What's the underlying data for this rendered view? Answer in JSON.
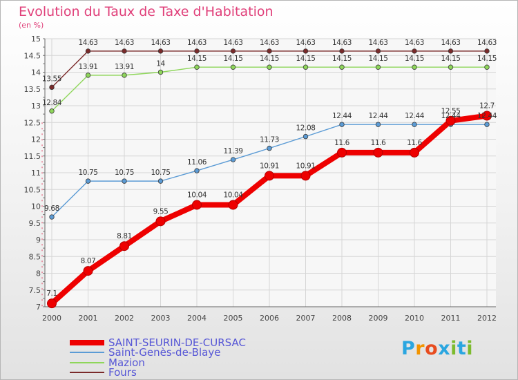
{
  "title": "Evolution du Taux de Taxe d'Habitation",
  "unit_label": "(en %)",
  "brand": {
    "letters": [
      "P",
      "r",
      "o",
      "x",
      "i",
      "t",
      "i"
    ],
    "colors": [
      "#2aa6e0",
      "#f29400",
      "#e84c1f",
      "#2aa6e0",
      "#7dbb2e",
      "#2aa6e0",
      "#7dbb2e"
    ]
  },
  "chart_data": {
    "type": "line",
    "x": [
      "2000",
      "2001",
      "2002",
      "2003",
      "2004",
      "2005",
      "2006",
      "2007",
      "2008",
      "2009",
      "2010",
      "2011",
      "2012"
    ],
    "ylim": [
      7,
      15
    ],
    "y_ticks": [
      "7",
      "7.5",
      "8",
      "8.5",
      "9",
      "9.5",
      "10",
      "10.5",
      "11",
      "11.5",
      "12",
      "12.5",
      "13",
      "13.5",
      "14",
      "14.5",
      "15"
    ],
    "grid": true,
    "legend_position": "bottom-left",
    "series": [
      {
        "name": "SAINT-SEURIN-DE-CURSAC",
        "color": "#ee0000",
        "values": [
          7.1,
          8.07,
          8.81,
          9.55,
          10.04,
          10.04,
          10.91,
          10.91,
          11.6,
          11.6,
          11.6,
          12.55,
          12.7
        ],
        "labels": [
          "7.1",
          "8.07",
          "8.81",
          "9.55",
          "10.04",
          "10.04",
          "10.91",
          "10.91",
          "11.6",
          "11.6",
          "11.6",
          "12.55",
          "12.7"
        ]
      },
      {
        "name": "Saint-Genès-de-Blaye",
        "color": "#5b9bd5",
        "values": [
          9.68,
          10.75,
          10.75,
          10.75,
          11.06,
          11.39,
          11.73,
          12.08,
          12.44,
          12.44,
          12.44,
          12.44,
          12.44
        ],
        "labels": [
          "9.68",
          "10.75",
          "10.75",
          "10.75",
          "11.06",
          "11.39",
          "11.73",
          "12.08",
          "12.44",
          "12.44",
          "12.44",
          "12.44",
          "12.44"
        ]
      },
      {
        "name": "Mazion",
        "color": "#8ed65a",
        "values": [
          12.84,
          13.91,
          13.91,
          14,
          14.15,
          14.15,
          14.15,
          14.15,
          14.15,
          14.15,
          14.15,
          14.15,
          14.15
        ],
        "labels": [
          "12.84",
          "13.91",
          "13.91",
          "14",
          "14.15",
          "14.15",
          "14.15",
          "14.15",
          "14.15",
          "14.15",
          "14.15",
          "14.15",
          "14.15"
        ]
      },
      {
        "name": "Fours",
        "color": "#7a2a2a",
        "values": [
          13.55,
          14.63,
          14.63,
          14.63,
          14.63,
          14.63,
          14.63,
          14.63,
          14.63,
          14.63,
          14.63,
          14.63,
          14.63
        ],
        "labels": [
          "13.55",
          "14.63",
          "14.63",
          "14.63",
          "14.63",
          "14.63",
          "14.63",
          "14.63",
          "14.63",
          "14.63",
          "14.63",
          "14.63",
          "14.63"
        ]
      }
    ]
  }
}
